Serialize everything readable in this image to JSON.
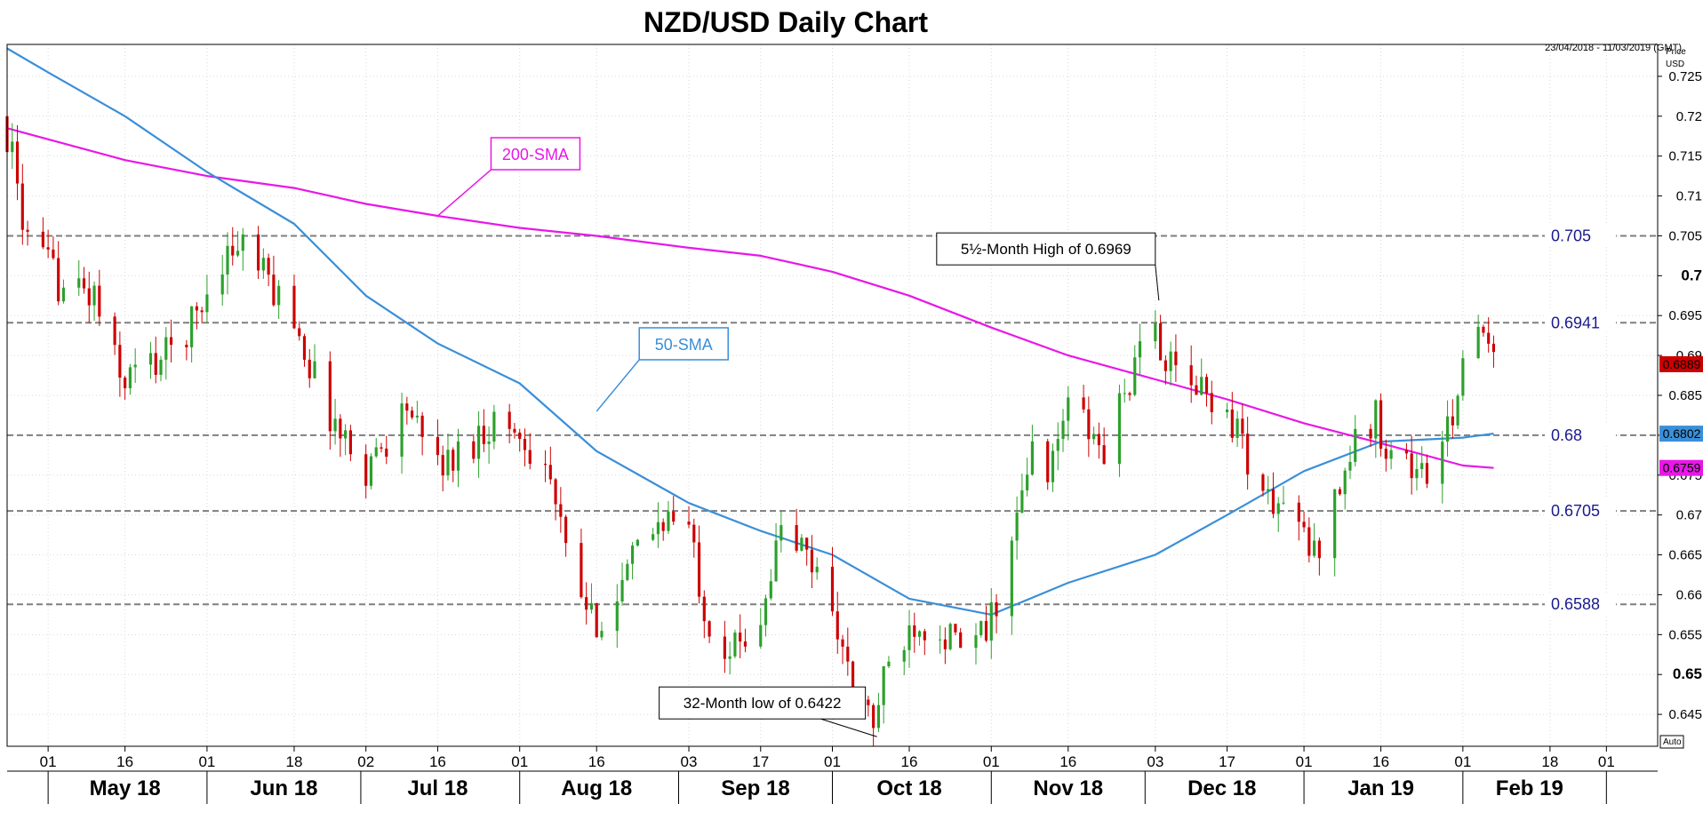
{
  "chart_data": {
    "type": "candlestick",
    "title": "NZD/USD Daily Chart",
    "date_range": "23/04/2018 - 11/03/2019 (GMT)",
    "ylabel": "Price\nUSD",
    "ylabel_lines": [
      "Price",
      "USD"
    ],
    "ylim": [
      0.641,
      0.729
    ],
    "y_ticks": [
      "0.725",
      "0.72",
      "0.715",
      "0.71",
      "0.705",
      "0.7",
      "0.695",
      "0.69",
      "0.685",
      "0.68",
      "0.675",
      "0.67",
      "0.665",
      "0.66",
      "0.655",
      "0.65",
      "0.645"
    ],
    "y_ticks_bold": [
      "0.7",
      "0.65"
    ],
    "x_day_ticks": [
      {
        "label": "01",
        "date": "2018-05-01"
      },
      {
        "label": "16",
        "date": "2018-05-16"
      },
      {
        "label": "01",
        "date": "2018-06-01"
      },
      {
        "label": "18",
        "date": "2018-06-18"
      },
      {
        "label": "02",
        "date": "2018-07-02"
      },
      {
        "label": "16",
        "date": "2018-07-16"
      },
      {
        "label": "01",
        "date": "2018-08-01"
      },
      {
        "label": "16",
        "date": "2018-08-16"
      },
      {
        "label": "03",
        "date": "2018-09-03"
      },
      {
        "label": "17",
        "date": "2018-09-17"
      },
      {
        "label": "01",
        "date": "2018-10-01"
      },
      {
        "label": "16",
        "date": "2018-10-16"
      },
      {
        "label": "01",
        "date": "2018-11-01"
      },
      {
        "label": "16",
        "date": "2018-11-16"
      },
      {
        "label": "03",
        "date": "2018-12-03"
      },
      {
        "label": "17",
        "date": "2018-12-17"
      },
      {
        "label": "01",
        "date": "2019-01-01"
      },
      {
        "label": "16",
        "date": "2019-01-16"
      },
      {
        "label": "01",
        "date": "2019-02-01"
      },
      {
        "label": "18",
        "date": "2019-02-18"
      },
      {
        "label": "01",
        "date": "2019-03-01"
      }
    ],
    "x_month_labels": [
      {
        "label": "May 18",
        "date": "2018-05-16"
      },
      {
        "label": "Jun 18",
        "date": "2018-06-16"
      },
      {
        "label": "Jul 18",
        "date": "2018-07-16"
      },
      {
        "label": "Aug 18",
        "date": "2018-08-16"
      },
      {
        "label": "Sep 18",
        "date": "2018-09-16"
      },
      {
        "label": "Oct 18",
        "date": "2018-10-16"
      },
      {
        "label": "Nov 18",
        "date": "2018-11-16"
      },
      {
        "label": "Dec 18",
        "date": "2018-12-16"
      },
      {
        "label": "Jan 19",
        "date": "2019-01-16"
      },
      {
        "label": "Feb 19",
        "date": "2019-02-14"
      }
    ],
    "x_month_boundaries": [
      "2018-05-01",
      "2018-06-01",
      "2018-07-01",
      "2018-08-01",
      "2018-09-01",
      "2018-10-01",
      "2018-11-01",
      "2018-12-01",
      "2019-01-01",
      "2019-02-01",
      "2019-03-01"
    ],
    "x_start": "2018-04-23",
    "x_end": "2019-03-11",
    "close_path": [
      [
        "2018-04-23",
        0.718
      ],
      [
        "2018-04-27",
        0.704
      ],
      [
        "2018-05-04",
        0.6985
      ],
      [
        "2018-05-10",
        0.6975
      ],
      [
        "2018-05-15",
        0.687
      ],
      [
        "2018-05-18",
        0.688
      ],
      [
        "2018-05-24",
        0.69
      ],
      [
        "2018-05-30",
        0.695
      ],
      [
        "2018-06-04",
        0.7025
      ],
      [
        "2018-06-08",
        0.704
      ],
      [
        "2018-06-13",
        0.699
      ],
      [
        "2018-06-18",
        0.695
      ],
      [
        "2018-06-22",
        0.687
      ],
      [
        "2018-06-27",
        0.68
      ],
      [
        "2018-07-02",
        0.676
      ],
      [
        "2018-07-06",
        0.6795
      ],
      [
        "2018-07-10",
        0.684
      ],
      [
        "2018-07-13",
        0.6785
      ],
      [
        "2018-07-18",
        0.6765
      ],
      [
        "2018-07-23",
        0.6795
      ],
      [
        "2018-07-27",
        0.682
      ],
      [
        "2018-08-01",
        0.68
      ],
      [
        "2018-08-06",
        0.677
      ],
      [
        "2018-08-10",
        0.665
      ],
      [
        "2018-08-15",
        0.6565
      ],
      [
        "2018-08-20",
        0.6595
      ],
      [
        "2018-08-24",
        0.6655
      ],
      [
        "2018-08-29",
        0.67
      ],
      [
        "2018-09-03",
        0.668
      ],
      [
        "2018-09-07",
        0.656
      ],
      [
        "2018-09-12",
        0.653
      ],
      [
        "2018-09-17",
        0.658
      ],
      [
        "2018-09-21",
        0.668
      ],
      [
        "2018-09-26",
        0.665
      ],
      [
        "2018-10-01",
        0.659
      ],
      [
        "2018-10-05",
        0.647
      ],
      [
        "2018-10-09",
        0.644
      ],
      [
        "2018-10-12",
        0.651
      ],
      [
        "2018-10-17",
        0.657
      ],
      [
        "2018-10-22",
        0.656
      ],
      [
        "2018-10-26",
        0.653
      ],
      [
        "2018-10-31",
        0.655
      ],
      [
        "2018-11-05",
        0.666
      ],
      [
        "2018-11-09",
        0.678
      ],
      [
        "2018-11-13",
        0.676
      ],
      [
        "2018-11-16",
        0.685
      ],
      [
        "2018-11-20",
        0.68
      ],
      [
        "2018-11-23",
        0.678
      ],
      [
        "2018-11-28",
        0.687
      ],
      [
        "2018-12-03",
        0.6935
      ],
      [
        "2018-12-06",
        0.688
      ],
      [
        "2018-12-11",
        0.686
      ],
      [
        "2018-12-14",
        0.685
      ],
      [
        "2018-12-19",
        0.681
      ],
      [
        "2018-12-24",
        0.672
      ],
      [
        "2018-12-28",
        0.671
      ],
      [
        "2019-01-03",
        0.665
      ],
      [
        "2019-01-08",
        0.674
      ],
      [
        "2019-01-11",
        0.679
      ],
      [
        "2019-01-15",
        0.682
      ],
      [
        "2019-01-18",
        0.678
      ],
      [
        "2019-01-22",
        0.676
      ],
      [
        "2019-01-25",
        0.675
      ],
      [
        "2019-01-29",
        0.68
      ],
      [
        "2019-02-01",
        0.69
      ],
      [
        "2019-02-05",
        0.692
      ],
      [
        "2019-02-07",
        0.6889
      ]
    ],
    "sma_200": [
      [
        "2018-04-23",
        0.7185
      ],
      [
        "2018-05-16",
        0.7145
      ],
      [
        "2018-06-01",
        0.7125
      ],
      [
        "2018-06-18",
        0.711
      ],
      [
        "2018-07-02",
        0.709
      ],
      [
        "2018-07-16",
        0.7075
      ],
      [
        "2018-08-01",
        0.706
      ],
      [
        "2018-08-16",
        0.705
      ],
      [
        "2018-09-03",
        0.7035
      ],
      [
        "2018-09-17",
        0.7025
      ],
      [
        "2018-10-01",
        0.7005
      ],
      [
        "2018-10-16",
        0.6975
      ],
      [
        "2018-11-01",
        0.6935
      ],
      [
        "2018-11-16",
        0.69
      ],
      [
        "2018-12-03",
        0.687
      ],
      [
        "2018-12-17",
        0.6845
      ],
      [
        "2019-01-01",
        0.6815
      ],
      [
        "2019-01-16",
        0.679
      ],
      [
        "2019-02-01",
        0.6762
      ],
      [
        "2019-02-07",
        0.6759
      ]
    ],
    "sma_50": [
      [
        "2018-04-23",
        0.7285
      ],
      [
        "2018-05-01",
        0.7255
      ],
      [
        "2018-05-16",
        0.72
      ],
      [
        "2018-06-01",
        0.713
      ],
      [
        "2018-06-18",
        0.7065
      ],
      [
        "2018-07-02",
        0.6975
      ],
      [
        "2018-07-16",
        0.6915
      ],
      [
        "2018-08-01",
        0.6865
      ],
      [
        "2018-08-16",
        0.678
      ],
      [
        "2018-09-03",
        0.6715
      ],
      [
        "2018-09-17",
        0.668
      ],
      [
        "2018-10-01",
        0.665
      ],
      [
        "2018-10-16",
        0.6595
      ],
      [
        "2018-11-01",
        0.6575
      ],
      [
        "2018-11-16",
        0.6615
      ],
      [
        "2018-12-03",
        0.665
      ],
      [
        "2018-12-17",
        0.67
      ],
      [
        "2019-01-01",
        0.6755
      ],
      [
        "2019-01-16",
        0.6792
      ],
      [
        "2019-02-01",
        0.6797
      ],
      [
        "2019-02-07",
        0.6802
      ]
    ],
    "levels": [
      {
        "value": 0.705,
        "label": "0.705"
      },
      {
        "value": 0.6941,
        "label": "0.6941"
      },
      {
        "value": 0.68,
        "label": "0.68"
      },
      {
        "value": 0.6705,
        "label": "0.6705"
      },
      {
        "value": 0.6588,
        "label": "0.6588"
      }
    ],
    "last_price_badges": [
      {
        "value": 0.6889,
        "label": "0.6889",
        "color": "#cc0000"
      },
      {
        "value": 0.6802,
        "label": "0.6802",
        "color": "#3a8fd8"
      },
      {
        "value": 0.6759,
        "label": "0.6759",
        "color": "#e817e8"
      }
    ],
    "annotations": [
      {
        "text": "5½-Month High of 0.6969",
        "date": "2018-12-03",
        "value": 0.6969
      },
      {
        "text": "32-Month low of 0.6422",
        "date": "2018-10-09",
        "value": 0.6422
      }
    ],
    "sma_labels": [
      {
        "text": "200-SMA",
        "color": "#e817e8",
        "date": "2018-07-16",
        "value": 0.7075
      },
      {
        "text": "50-SMA",
        "color": "#3a8fd8",
        "date": "2018-08-16",
        "value": 0.683
      }
    ],
    "auto_label": "Auto",
    "colors": {
      "up": "#2ca02c",
      "down": "#cc0000",
      "sma_200": "#e817e8",
      "sma_50": "#3a8fd8",
      "level_line": "#7f7f7f",
      "level_text": "#1a1a8c"
    }
  }
}
